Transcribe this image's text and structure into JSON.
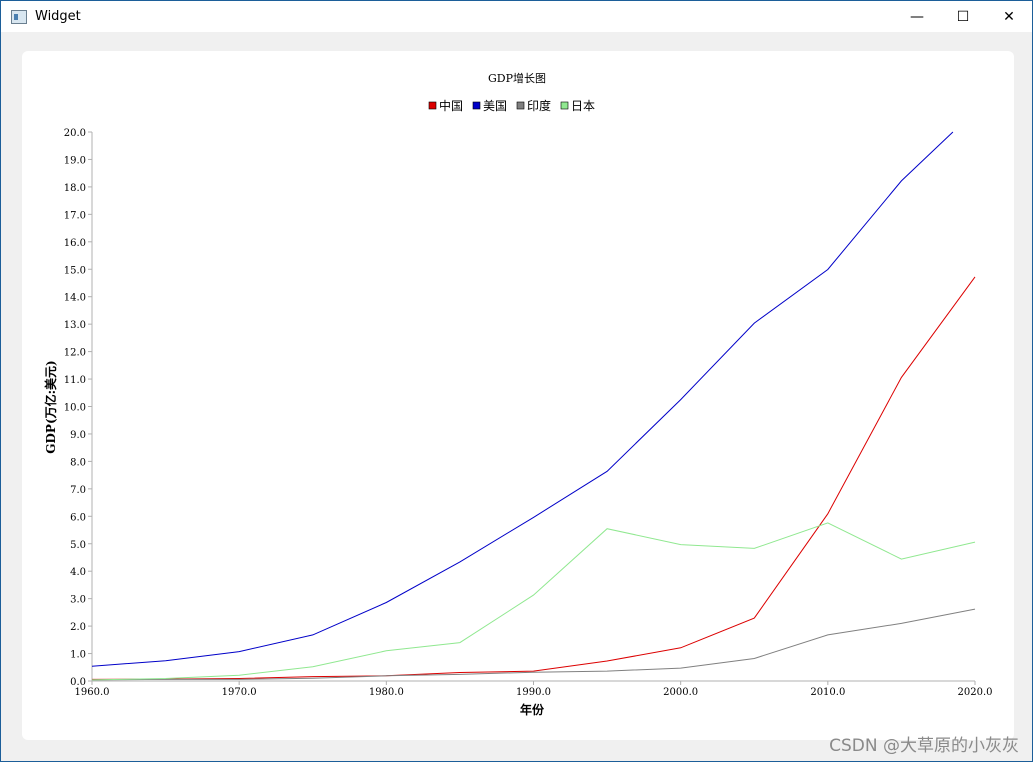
{
  "window": {
    "title": "Widget",
    "minimize_glyph": "—",
    "maximize_glyph": "☐",
    "close_glyph": "✕",
    "icon": "app-window-icon"
  },
  "watermark": "CSDN @大草原的小灰灰",
  "chart_data": {
    "type": "line",
    "title": "GDP增长图",
    "xlabel": "年份",
    "ylabel": "GDP(万亿:美元)",
    "xlim": [
      1960,
      2020
    ],
    "ylim": [
      0,
      20
    ],
    "x_ticks": [
      "1960.0",
      "1970.0",
      "1980.0",
      "1990.0",
      "2000.0",
      "2010.0",
      "2020.0"
    ],
    "y_ticks": [
      "0.0",
      "1.0",
      "2.0",
      "3.0",
      "4.0",
      "5.0",
      "6.0",
      "7.0",
      "8.0",
      "9.0",
      "10.0",
      "11.0",
      "12.0",
      "13.0",
      "14.0",
      "15.0",
      "16.0",
      "17.0",
      "18.0",
      "19.0",
      "20.0"
    ],
    "legend_position": "top-center",
    "grid": false,
    "series": [
      {
        "name": "中国",
        "color": "#dc0000",
        "points": [
          [
            1960,
            0.06
          ],
          [
            1965,
            0.07
          ],
          [
            1970,
            0.09
          ],
          [
            1975,
            0.16
          ],
          [
            1980,
            0.19
          ],
          [
            1985,
            0.31
          ],
          [
            1990,
            0.36
          ],
          [
            1995,
            0.73
          ],
          [
            2000,
            1.21
          ],
          [
            2005,
            2.29
          ],
          [
            2010,
            6.09
          ],
          [
            2015,
            11.06
          ],
          [
            2020,
            14.72
          ]
        ]
      },
      {
        "name": "美国",
        "color": "#0000c8",
        "points": [
          [
            1960,
            0.54
          ],
          [
            1965,
            0.74
          ],
          [
            1970,
            1.07
          ],
          [
            1975,
            1.68
          ],
          [
            1980,
            2.86
          ],
          [
            1985,
            4.34
          ],
          [
            1990,
            5.96
          ],
          [
            1995,
            7.64
          ],
          [
            2000,
            10.25
          ],
          [
            2005,
            13.04
          ],
          [
            2010,
            14.99
          ],
          [
            2015,
            18.22
          ],
          [
            2018.5,
            20.0
          ]
        ]
      },
      {
        "name": "印度",
        "color": "#808080",
        "points": [
          [
            1960,
            0.04
          ],
          [
            1965,
            0.06
          ],
          [
            1970,
            0.06
          ],
          [
            1975,
            0.1
          ],
          [
            1980,
            0.19
          ],
          [
            1985,
            0.24
          ],
          [
            1990,
            0.32
          ],
          [
            1995,
            0.36
          ],
          [
            2000,
            0.47
          ],
          [
            2005,
            0.82
          ],
          [
            2010,
            1.68
          ],
          [
            2015,
            2.1
          ],
          [
            2020,
            2.62
          ]
        ]
      },
      {
        "name": "日本",
        "color": "#90e890",
        "points": [
          [
            1960,
            0.04
          ],
          [
            1965,
            0.09
          ],
          [
            1970,
            0.21
          ],
          [
            1975,
            0.52
          ],
          [
            1980,
            1.1
          ],
          [
            1985,
            1.4
          ],
          [
            1990,
            3.13
          ],
          [
            1995,
            5.55
          ],
          [
            2000,
            4.97
          ],
          [
            2005,
            4.83
          ],
          [
            2010,
            5.76
          ],
          [
            2015,
            4.44
          ],
          [
            2020,
            5.06
          ]
        ]
      }
    ]
  }
}
